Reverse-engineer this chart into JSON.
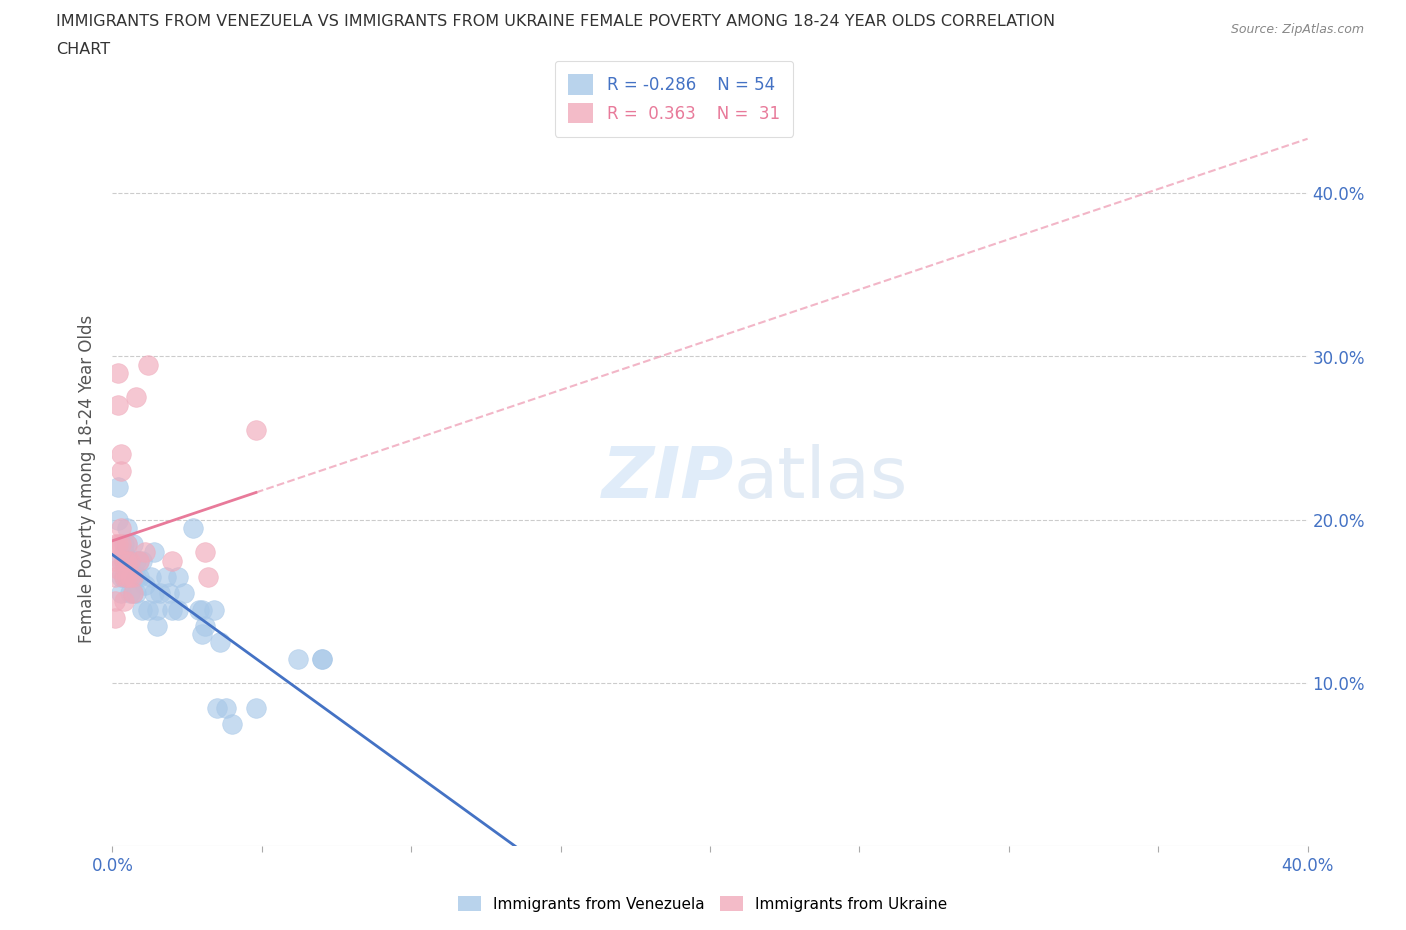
{
  "title_line1": "IMMIGRANTS FROM VENEZUELA VS IMMIGRANTS FROM UKRAINE FEMALE POVERTY AMONG 18-24 YEAR OLDS CORRELATION",
  "title_line2": "CHART",
  "source_text": "Source: ZipAtlas.com",
  "ylabel": "Female Poverty Among 18-24 Year Olds",
  "xlim": [
    0.0,
    0.4
  ],
  "ylim": [
    0.0,
    0.45
  ],
  "xticks_major": [
    0.0,
    0.1,
    0.2,
    0.3,
    0.4
  ],
  "xticks_minor": [
    0.0,
    0.05,
    0.1,
    0.15,
    0.2,
    0.25,
    0.3,
    0.35,
    0.4
  ],
  "yticks": [
    0.1,
    0.2,
    0.3,
    0.4
  ],
  "xticklabels_ends": [
    "0.0%",
    "40.0%"
  ],
  "yticklabels": [
    "10.0%",
    "20.0%",
    "30.0%",
    "40.0%"
  ],
  "venezuela_color": "#a8c8e8",
  "ukraine_color": "#f0aabb",
  "venezuela_line_color": "#4472c4",
  "ukraine_line_color": "#e87a9a",
  "tick_label_color": "#4472c4",
  "venezuela_R": -0.286,
  "venezuela_N": 54,
  "ukraine_R": 0.363,
  "ukraine_N": 31,
  "background_color": "#ffffff",
  "venezuela_x": [
    0.002,
    0.002,
    0.003,
    0.003,
    0.003,
    0.004,
    0.004,
    0.004,
    0.004,
    0.005,
    0.005,
    0.005,
    0.005,
    0.006,
    0.006,
    0.006,
    0.007,
    0.007,
    0.007,
    0.008,
    0.008,
    0.008,
    0.009,
    0.009,
    0.01,
    0.01,
    0.011,
    0.012,
    0.013,
    0.014,
    0.014,
    0.015,
    0.015,
    0.016,
    0.018,
    0.019,
    0.02,
    0.022,
    0.022,
    0.024,
    0.027,
    0.029,
    0.03,
    0.03,
    0.031,
    0.034,
    0.035,
    0.036,
    0.038,
    0.04,
    0.048,
    0.062,
    0.07,
    0.07
  ],
  "venezuela_y": [
    0.2,
    0.22,
    0.175,
    0.165,
    0.155,
    0.185,
    0.175,
    0.165,
    0.18,
    0.195,
    0.175,
    0.185,
    0.165,
    0.17,
    0.175,
    0.155,
    0.185,
    0.165,
    0.155,
    0.175,
    0.165,
    0.155,
    0.175,
    0.165,
    0.175,
    0.145,
    0.16,
    0.145,
    0.165,
    0.155,
    0.18,
    0.145,
    0.135,
    0.155,
    0.165,
    0.155,
    0.145,
    0.165,
    0.145,
    0.155,
    0.195,
    0.145,
    0.145,
    0.13,
    0.135,
    0.145,
    0.085,
    0.125,
    0.085,
    0.075,
    0.085,
    0.115,
    0.115,
    0.115
  ],
  "ukraine_x": [
    0.001,
    0.001,
    0.001,
    0.001,
    0.001,
    0.002,
    0.002,
    0.002,
    0.002,
    0.003,
    0.003,
    0.003,
    0.003,
    0.004,
    0.004,
    0.004,
    0.005,
    0.005,
    0.005,
    0.006,
    0.006,
    0.007,
    0.007,
    0.008,
    0.009,
    0.011,
    0.012,
    0.02,
    0.031,
    0.032,
    0.048
  ],
  "ukraine_y": [
    0.185,
    0.175,
    0.165,
    0.15,
    0.14,
    0.29,
    0.27,
    0.185,
    0.17,
    0.24,
    0.23,
    0.195,
    0.185,
    0.175,
    0.165,
    0.15,
    0.185,
    0.175,
    0.165,
    0.175,
    0.165,
    0.165,
    0.155,
    0.275,
    0.175,
    0.18,
    0.295,
    0.175,
    0.18,
    0.165,
    0.255
  ]
}
